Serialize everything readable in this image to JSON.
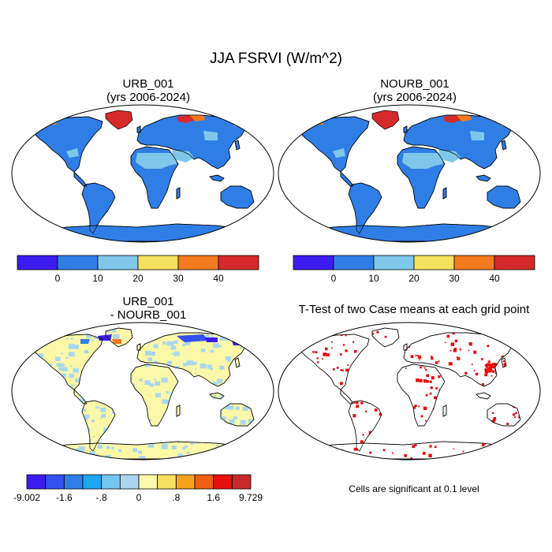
{
  "title": "JJA FSRVI (W/m^2)",
  "panels": [
    {
      "id": "urb",
      "title_line1": "URB_001",
      "title_line2": "(yrs 2006-2024)"
    },
    {
      "id": "nourb",
      "title_line1": "NOURB_001",
      "title_line2": "(yrs 2006-2024)"
    },
    {
      "id": "diff",
      "title_line1": "URB_001",
      "title_line2": "- NOURB_001"
    },
    {
      "id": "ttest",
      "title_line1": "T-Test of two Case means at each grid point",
      "title_line2": ""
    }
  ],
  "colorbar_top": {
    "colors": [
      "#3d1cf0",
      "#2f7ee6",
      "#7ec7ea",
      "#f4e25e",
      "#f47a1f",
      "#d62a2a"
    ],
    "labels": [
      "0",
      "10",
      "20",
      "30",
      "40"
    ]
  },
  "colorbar_diff": {
    "colors": [
      "#3d1cf0",
      "#3350f0",
      "#2f7ee6",
      "#1ea6f0",
      "#72c6ee",
      "#a9d8ee",
      "#fbf8a8",
      "#f6e25e",
      "#f5a21c",
      "#f05f14",
      "#e80f0f",
      "#c82a2a"
    ],
    "labels": [
      "-9.002",
      "-1.6",
      "-.8",
      "0",
      ".8",
      "1.6",
      "9.729"
    ]
  },
  "note": "Cells are significant at 0.1 level",
  "map_colors": {
    "ocean": "#ffffff",
    "land_base": "#2f7ee6",
    "desert": "#7ec7ea",
    "greenland": "#d62a2a",
    "arctic_warm": "#f47a1f",
    "diff_land": "#fbf8a8",
    "diff_light": "#a9d8ee",
    "signif": "#ee0000"
  }
}
